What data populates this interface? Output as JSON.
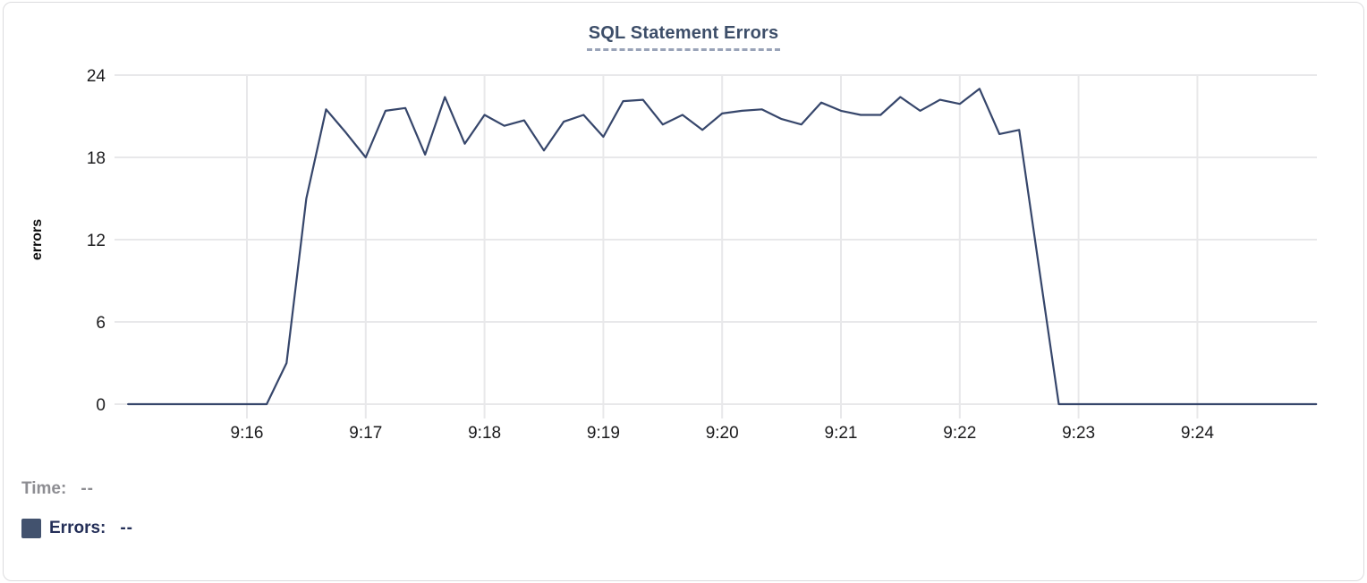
{
  "chart_data": {
    "type": "line",
    "title": "SQL Statement Errors",
    "xlabel": "",
    "ylabel": "errors",
    "ylim": [
      0,
      24
    ],
    "yticks": [
      0,
      6,
      12,
      18,
      24
    ],
    "xticks": [
      "9:16",
      "9:17",
      "9:18",
      "9:19",
      "9:20",
      "9:21",
      "9:22",
      "9:23",
      "9:24"
    ],
    "xlim": [
      "9:15:00",
      "9:25:00"
    ],
    "grid": true,
    "legend_position": "bottom-left",
    "series": [
      {
        "name": "Errors",
        "color": "#36466b",
        "points": [
          [
            "9:15:00",
            0
          ],
          [
            "9:15:10",
            0
          ],
          [
            "9:15:20",
            0
          ],
          [
            "9:15:30",
            0
          ],
          [
            "9:15:40",
            0
          ],
          [
            "9:15:50",
            0
          ],
          [
            "9:16:00",
            0
          ],
          [
            "9:16:10",
            0
          ],
          [
            "9:16:20",
            3
          ],
          [
            "9:16:30",
            15
          ],
          [
            "9:16:40",
            21.5
          ],
          [
            "9:16:50",
            19.8
          ],
          [
            "9:17:00",
            18
          ],
          [
            "9:17:10",
            21.4
          ],
          [
            "9:17:20",
            21.6
          ],
          [
            "9:17:30",
            18.2
          ],
          [
            "9:17:40",
            22.4
          ],
          [
            "9:17:50",
            19
          ],
          [
            "9:18:00",
            21.1
          ],
          [
            "9:18:10",
            20.3
          ],
          [
            "9:18:20",
            20.7
          ],
          [
            "9:18:30",
            18.5
          ],
          [
            "9:18:40",
            20.6
          ],
          [
            "9:18:50",
            21.1
          ],
          [
            "9:19:00",
            19.5
          ],
          [
            "9:19:10",
            22.1
          ],
          [
            "9:19:20",
            22.2
          ],
          [
            "9:19:30",
            20.4
          ],
          [
            "9:19:40",
            21.1
          ],
          [
            "9:19:50",
            20
          ],
          [
            "9:20:00",
            21.2
          ],
          [
            "9:20:10",
            21.4
          ],
          [
            "9:20:20",
            21.5
          ],
          [
            "9:20:30",
            20.8
          ],
          [
            "9:20:40",
            20.4
          ],
          [
            "9:20:50",
            22
          ],
          [
            "9:21:00",
            21.4
          ],
          [
            "9:21:10",
            21.1
          ],
          [
            "9:21:20",
            21.1
          ],
          [
            "9:21:30",
            22.4
          ],
          [
            "9:21:40",
            21.4
          ],
          [
            "9:21:50",
            22.2
          ],
          [
            "9:22:00",
            21.9
          ],
          [
            "9:22:10",
            23
          ],
          [
            "9:22:20",
            19.7
          ],
          [
            "9:22:30",
            20
          ],
          [
            "9:22:40",
            10
          ],
          [
            "9:22:50",
            0
          ],
          [
            "9:23:00",
            0
          ],
          [
            "9:23:10",
            0
          ],
          [
            "9:23:20",
            0
          ],
          [
            "9:23:30",
            0
          ],
          [
            "9:23:40",
            0
          ],
          [
            "9:23:50",
            0
          ],
          [
            "9:24:00",
            0
          ],
          [
            "9:24:10",
            0
          ],
          [
            "9:24:20",
            0
          ],
          [
            "9:24:30",
            0
          ],
          [
            "9:24:40",
            0
          ],
          [
            "9:24:50",
            0
          ],
          [
            "9:25:00",
            0
          ]
        ]
      }
    ]
  },
  "legend": {
    "time_label": "Time:",
    "time_value": "--",
    "errors_label": "Errors:",
    "errors_value": "--",
    "swatch_color": "#42526e"
  },
  "colors": {
    "line": "#36466b",
    "grid": "#e8e8ea",
    "title": "#3d4e69",
    "title_underline": "#99a3b8",
    "tick_text": "#1b1b1d",
    "axis_title_text": "#0d0d0d",
    "time_text": "#8d8d92",
    "errors_text": "#242f58",
    "card_border": "#dcdcde"
  }
}
